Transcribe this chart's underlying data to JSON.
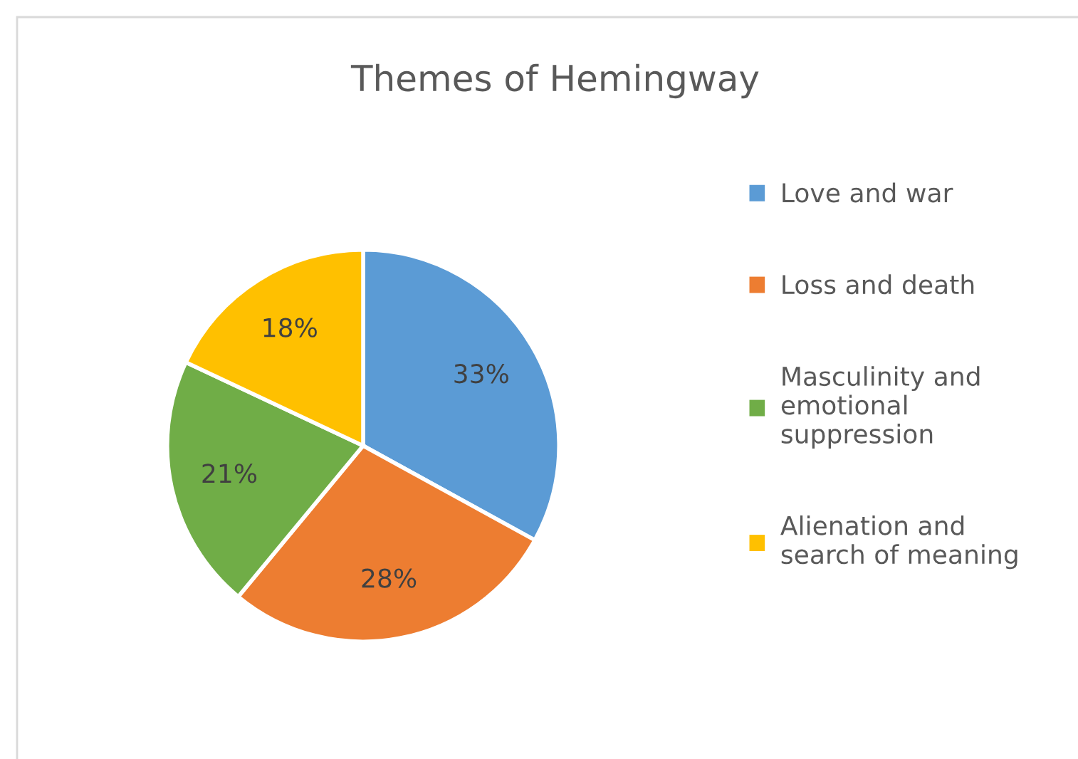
{
  "chart_data": {
    "type": "pie",
    "title": "Themes of Hemingway",
    "categories": [
      "Love and war",
      "Loss and death",
      "Masculinity and emotional suppression",
      "Alienation and search of meaning"
    ],
    "values": [
      33,
      28,
      21,
      18
    ],
    "value_labels": [
      "33%",
      "28%",
      "21%",
      "18%"
    ],
    "colors": [
      "#5b9bd5",
      "#ed7d31",
      "#70ad47",
      "#ffc000"
    ],
    "legend": "right"
  }
}
